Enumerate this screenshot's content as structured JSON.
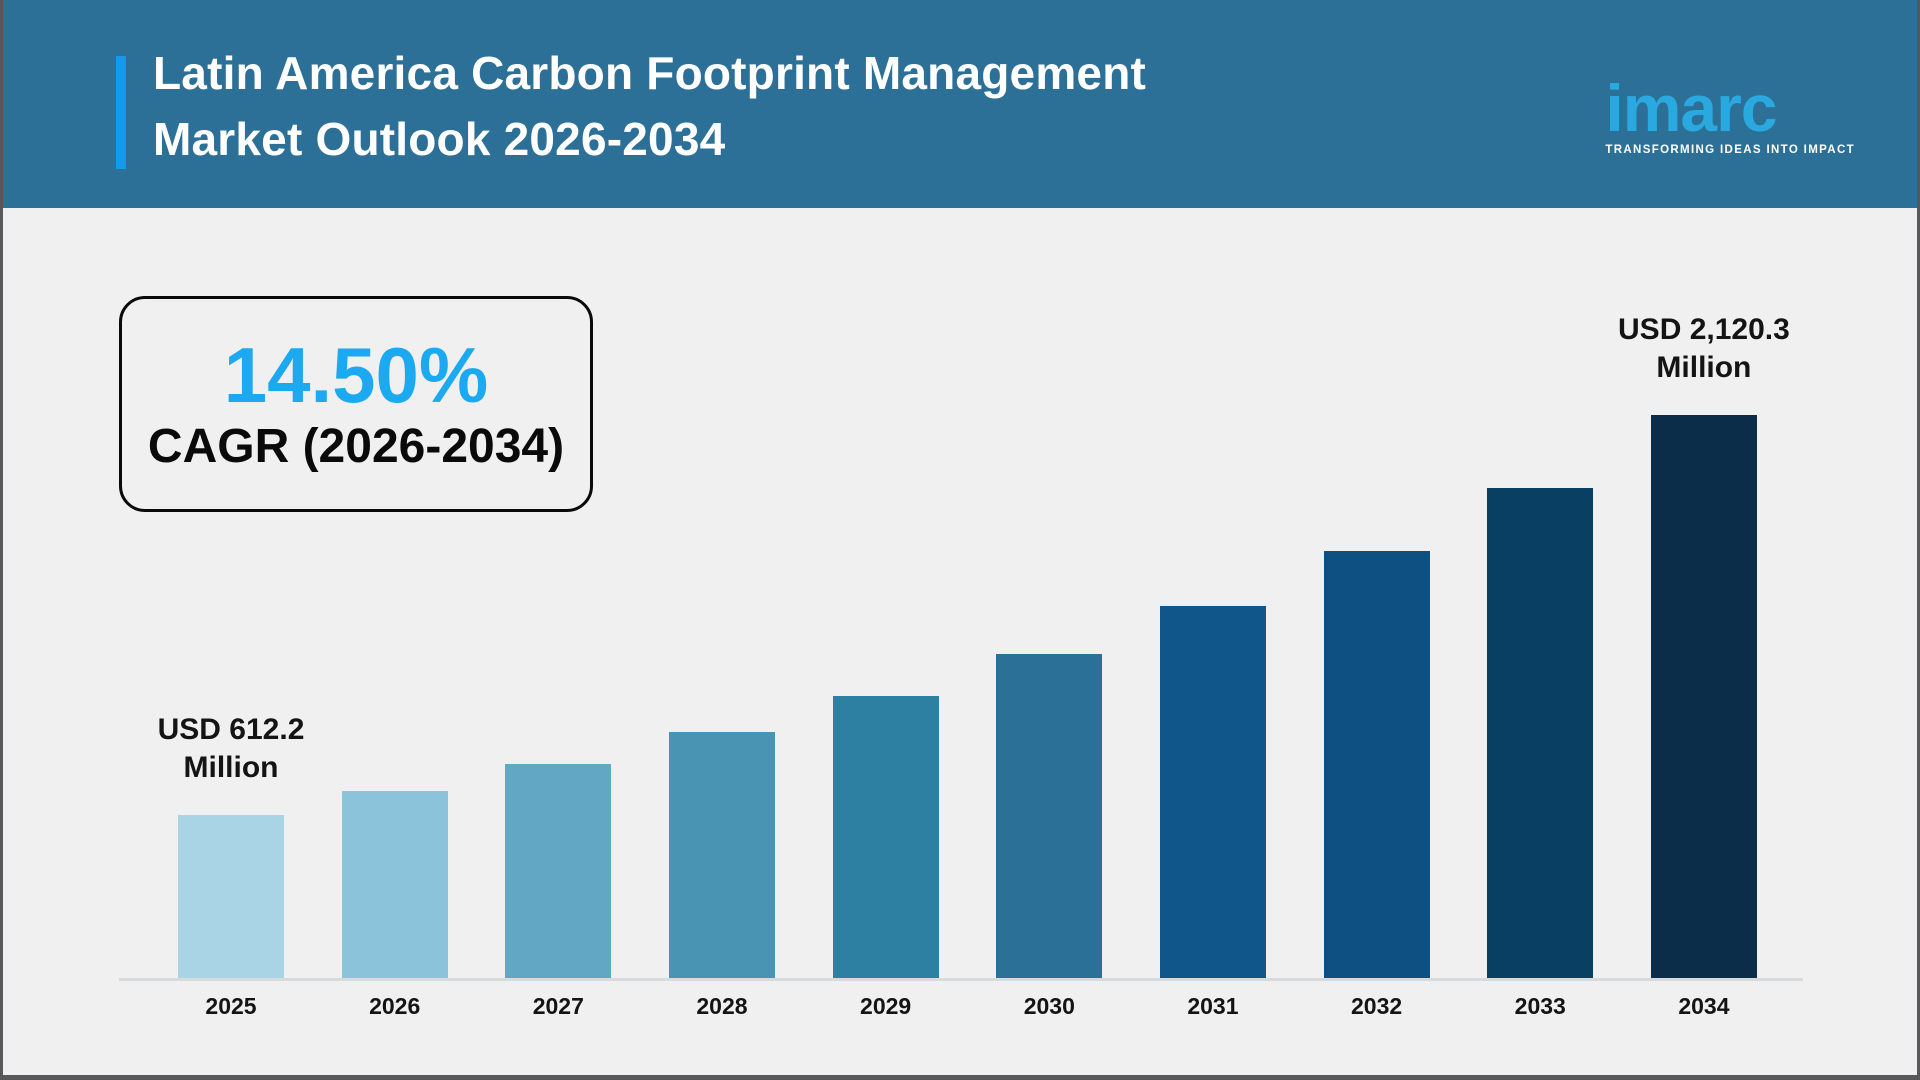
{
  "header": {
    "title_line1": "Latin America Carbon Footprint Management",
    "title_line2": "Market Outlook 2026-2034",
    "logo": {
      "wordmark": "imarc",
      "tagline": "TRANSFORMING IDEAS INTO IMPACT"
    }
  },
  "highlight": {
    "cagr_value": "14.50%",
    "cagr_label": "CAGR (2026-2034)"
  },
  "chart_data": {
    "type": "bar",
    "title": "Latin America Carbon Footprint Management Market Outlook 2026-2034",
    "unit": "USD Million",
    "categories": [
      "2025",
      "2026",
      "2027",
      "2028",
      "2029",
      "2030",
      "2031",
      "2032",
      "2033",
      "2034"
    ],
    "values": [
      612.2,
      702.8,
      806.8,
      926.2,
      1063.3,
      1220.6,
      1401.3,
      1608.6,
      1846.7,
      2120.3
    ],
    "value_labels": {
      "2025": "USD 612.2\nMillion",
      "2034": "USD 2,120.3\nMillion"
    },
    "bar_colors": [
      "#A9D4E5",
      "#8BC3DB",
      "#62A8C5",
      "#4894B2",
      "#2E80A2",
      "#2B7097",
      "#10568B",
      "#0E5082",
      "#0A3F64",
      "#0B2D4A"
    ],
    "xlabel": "",
    "ylabel": "",
    "ylim": [
      0,
      2120.3
    ],
    "grid": false,
    "legend": false,
    "axis_line_color": "#D9DADB"
  },
  "colors": {
    "header_background": "#2C7098",
    "title_accent_bar": "#119BE8",
    "cagr_value_blue": "#1BA9F1",
    "logo_blue": "#2AA9E1",
    "page_background": "#F1F0F0",
    "frame_border": "#58585A",
    "text_dark": "#141414"
  }
}
